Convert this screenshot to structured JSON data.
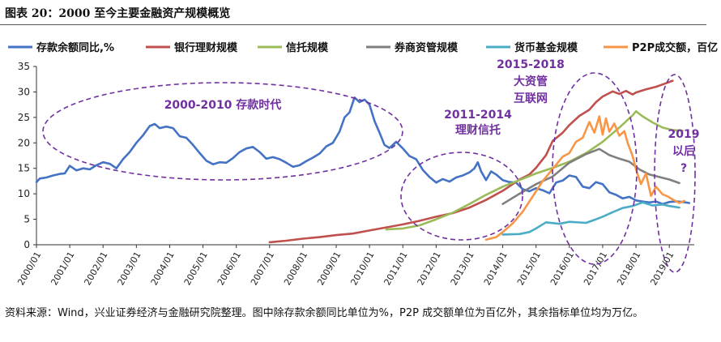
{
  "figure": {
    "title": "图表 20：2000 至今主要金融资产规模概览",
    "note": "资料来源：Wind，兴业证券经济与金融研究院整理。图中除存款余额同比单位为%，P2P 成交额单位为百亿外，其余指标单位均为万亿。"
  },
  "chart_data": {
    "type": "line",
    "title": "",
    "xlabel": "",
    "ylabel": "",
    "ylim": [
      0,
      35
    ],
    "yticks": [
      0,
      5,
      10,
      15,
      20,
      25,
      30,
      35
    ],
    "xlim": [
      2000.0,
      2019.75
    ],
    "xtick_labels": [
      "2000/01",
      "2001/01",
      "2002/01",
      "2003/01",
      "2004/01",
      "2005/01",
      "2006/01",
      "2007/01",
      "2008/01",
      "2009/01",
      "2010/01",
      "2011/01",
      "2012/01",
      "2013/01",
      "2014/01",
      "2015/01",
      "2016/01",
      "2017/01",
      "2018/01",
      "2019/01"
    ],
    "grid": false,
    "legend_position": "top",
    "series": [
      {
        "name": "存款余额同比,%",
        "color": "#4472c4",
        "points": [
          [
            2000.0,
            12.3
          ],
          [
            2000.1,
            13.0
          ],
          [
            2000.3,
            13.2
          ],
          [
            2000.5,
            13.6
          ],
          [
            2000.7,
            13.9
          ],
          [
            2000.85,
            14.0
          ],
          [
            2001.0,
            15.5
          ],
          [
            2001.2,
            14.6
          ],
          [
            2001.4,
            15.0
          ],
          [
            2001.6,
            14.8
          ],
          [
            2001.8,
            15.6
          ],
          [
            2002.0,
            16.2
          ],
          [
            2002.2,
            15.9
          ],
          [
            2002.4,
            15.0
          ],
          [
            2002.6,
            16.8
          ],
          [
            2002.8,
            18.2
          ],
          [
            2003.0,
            20.0
          ],
          [
            2003.2,
            21.5
          ],
          [
            2003.4,
            23.3
          ],
          [
            2003.55,
            23.7
          ],
          [
            2003.7,
            22.9
          ],
          [
            2003.9,
            23.2
          ],
          [
            2004.1,
            22.9
          ],
          [
            2004.3,
            21.3
          ],
          [
            2004.5,
            21.0
          ],
          [
            2004.7,
            19.6
          ],
          [
            2004.9,
            18.0
          ],
          [
            2005.1,
            16.5
          ],
          [
            2005.3,
            15.8
          ],
          [
            2005.5,
            16.2
          ],
          [
            2005.7,
            16.1
          ],
          [
            2005.9,
            17.0
          ],
          [
            2006.1,
            18.2
          ],
          [
            2006.3,
            18.9
          ],
          [
            2006.5,
            19.2
          ],
          [
            2006.7,
            18.2
          ],
          [
            2006.9,
            16.9
          ],
          [
            2007.1,
            17.2
          ],
          [
            2007.3,
            16.8
          ],
          [
            2007.5,
            16.1
          ],
          [
            2007.7,
            15.3
          ],
          [
            2007.9,
            15.6
          ],
          [
            2008.1,
            16.4
          ],
          [
            2008.3,
            17.1
          ],
          [
            2008.5,
            17.9
          ],
          [
            2008.7,
            19.3
          ],
          [
            2008.9,
            20.0
          ],
          [
            2009.1,
            22.2
          ],
          [
            2009.25,
            25.0
          ],
          [
            2009.4,
            26.0
          ],
          [
            2009.55,
            28.9
          ],
          [
            2009.7,
            28.0
          ],
          [
            2009.85,
            28.5
          ],
          [
            2010.0,
            27.5
          ],
          [
            2010.15,
            24.3
          ],
          [
            2010.3,
            22.0
          ],
          [
            2010.45,
            19.6
          ],
          [
            2010.6,
            19.0
          ],
          [
            2010.8,
            20.2
          ],
          [
            2011.0,
            18.9
          ],
          [
            2011.2,
            17.4
          ],
          [
            2011.4,
            16.8
          ],
          [
            2011.6,
            14.7
          ],
          [
            2011.8,
            13.3
          ],
          [
            2012.0,
            12.2
          ],
          [
            2012.2,
            12.9
          ],
          [
            2012.4,
            12.4
          ],
          [
            2012.6,
            13.2
          ],
          [
            2012.8,
            13.6
          ],
          [
            2013.0,
            14.2
          ],
          [
            2013.15,
            15.0
          ],
          [
            2013.25,
            16.2
          ],
          [
            2013.35,
            14.4
          ],
          [
            2013.5,
            12.7
          ],
          [
            2013.65,
            14.4
          ],
          [
            2013.8,
            13.8
          ],
          [
            2014.0,
            12.7
          ],
          [
            2014.2,
            12.3
          ],
          [
            2014.4,
            12.2
          ],
          [
            2014.6,
            10.9
          ],
          [
            2014.8,
            10.5
          ],
          [
            2015.0,
            11.1
          ],
          [
            2015.2,
            10.7
          ],
          [
            2015.4,
            10.1
          ],
          [
            2015.6,
            12.2
          ],
          [
            2015.8,
            12.6
          ],
          [
            2016.0,
            13.6
          ],
          [
            2016.2,
            13.3
          ],
          [
            2016.4,
            11.4
          ],
          [
            2016.6,
            11.1
          ],
          [
            2016.8,
            12.3
          ],
          [
            2017.0,
            11.9
          ],
          [
            2017.2,
            10.3
          ],
          [
            2017.4,
            9.8
          ],
          [
            2017.6,
            9.1
          ],
          [
            2017.8,
            9.4
          ],
          [
            2018.0,
            8.7
          ],
          [
            2018.2,
            8.5
          ],
          [
            2018.4,
            8.3
          ],
          [
            2018.6,
            8.5
          ],
          [
            2018.8,
            8.0
          ],
          [
            2019.0,
            8.4
          ],
          [
            2019.2,
            8.5
          ],
          [
            2019.4,
            8.4
          ],
          [
            2019.6,
            8.2
          ]
        ]
      },
      {
        "name": "银行理财规模",
        "color": "#c0504d",
        "points": [
          [
            2007.0,
            0.5
          ],
          [
            2007.5,
            0.8
          ],
          [
            2008.0,
            1.2
          ],
          [
            2008.5,
            1.5
          ],
          [
            2009.0,
            1.9
          ],
          [
            2009.5,
            2.2
          ],
          [
            2010.0,
            2.8
          ],
          [
            2010.5,
            3.4
          ],
          [
            2011.0,
            4.0
          ],
          [
            2011.5,
            4.7
          ],
          [
            2012.0,
            5.5
          ],
          [
            2012.5,
            6.2
          ],
          [
            2013.0,
            7.3
          ],
          [
            2013.5,
            8.8
          ],
          [
            2014.0,
            10.6
          ],
          [
            2014.5,
            12.8
          ],
          [
            2014.8,
            13.8
          ],
          [
            2015.0,
            15.1
          ],
          [
            2015.3,
            17.6
          ],
          [
            2015.5,
            20.4
          ],
          [
            2015.8,
            22.0
          ],
          [
            2016.0,
            23.5
          ],
          [
            2016.3,
            25.3
          ],
          [
            2016.6,
            26.5
          ],
          [
            2016.8,
            28.0
          ],
          [
            2017.0,
            29.1
          ],
          [
            2017.3,
            30.1
          ],
          [
            2017.5,
            29.6
          ],
          [
            2017.7,
            30.2
          ],
          [
            2017.9,
            29.5
          ],
          [
            2018.0,
            29.9
          ],
          [
            2018.3,
            30.5
          ],
          [
            2018.6,
            31.0
          ],
          [
            2018.9,
            31.7
          ],
          [
            2019.1,
            32.2
          ]
        ]
      },
      {
        "name": "信托规模",
        "color": "#9bbb59",
        "points": [
          [
            2010.5,
            3.0
          ],
          [
            2011.0,
            3.2
          ],
          [
            2011.5,
            3.8
          ],
          [
            2012.0,
            5.0
          ],
          [
            2012.5,
            6.3
          ],
          [
            2013.0,
            8.0
          ],
          [
            2013.5,
            9.8
          ],
          [
            2014.0,
            11.4
          ],
          [
            2014.5,
            12.7
          ],
          [
            2015.0,
            14.0
          ],
          [
            2015.5,
            15.1
          ],
          [
            2016.0,
            16.3
          ],
          [
            2016.5,
            18.0
          ],
          [
            2017.0,
            20.2
          ],
          [
            2017.5,
            23.0
          ],
          [
            2017.9,
            25.4
          ],
          [
            2018.0,
            26.2
          ],
          [
            2018.2,
            25.2
          ],
          [
            2018.5,
            24.0
          ],
          [
            2018.8,
            23.0
          ],
          [
            2019.1,
            22.5
          ],
          [
            2019.4,
            22.4
          ]
        ]
      },
      {
        "name": "券商资管规模",
        "color": "#7f7f7f",
        "points": [
          [
            2014.0,
            8.0
          ],
          [
            2014.5,
            10.0
          ],
          [
            2015.0,
            11.9
          ],
          [
            2015.5,
            13.4
          ],
          [
            2016.0,
            16.1
          ],
          [
            2016.5,
            17.8
          ],
          [
            2016.9,
            18.8
          ],
          [
            2017.2,
            17.6
          ],
          [
            2017.5,
            16.9
          ],
          [
            2017.8,
            16.3
          ],
          [
            2018.1,
            14.8
          ],
          [
            2018.4,
            13.8
          ],
          [
            2018.7,
            13.3
          ],
          [
            2019.0,
            12.8
          ],
          [
            2019.3,
            12.1
          ]
        ]
      },
      {
        "name": "货币基金规模",
        "color": "#4bacc6",
        "points": [
          [
            2014.0,
            2.0
          ],
          [
            2014.5,
            2.1
          ],
          [
            2014.8,
            2.5
          ],
          [
            2015.0,
            3.2
          ],
          [
            2015.3,
            4.4
          ],
          [
            2015.7,
            4.1
          ],
          [
            2016.0,
            4.5
          ],
          [
            2016.5,
            4.3
          ],
          [
            2016.8,
            5.0
          ],
          [
            2017.0,
            5.5
          ],
          [
            2017.3,
            6.4
          ],
          [
            2017.6,
            7.2
          ],
          [
            2017.9,
            7.6
          ],
          [
            2018.2,
            8.3
          ],
          [
            2018.5,
            7.7
          ],
          [
            2018.8,
            7.9
          ],
          [
            2019.0,
            7.6
          ],
          [
            2019.3,
            7.3
          ]
        ]
      },
      {
        "name": "P2P成交额，百亿",
        "color": "#f79646",
        "points": [
          [
            2013.5,
            1.0
          ],
          [
            2013.8,
            1.5
          ],
          [
            2014.0,
            2.5
          ],
          [
            2014.3,
            4.2
          ],
          [
            2014.6,
            6.5
          ],
          [
            2014.9,
            9.5
          ],
          [
            2015.2,
            12.5
          ],
          [
            2015.5,
            14.9
          ],
          [
            2015.8,
            17.3
          ],
          [
            2016.0,
            18.0
          ],
          [
            2016.2,
            20.2
          ],
          [
            2016.4,
            21.0
          ],
          [
            2016.6,
            24.1
          ],
          [
            2016.75,
            22.0
          ],
          [
            2016.9,
            25.2
          ],
          [
            2017.0,
            21.6
          ],
          [
            2017.1,
            24.8
          ],
          [
            2017.2,
            22.2
          ],
          [
            2017.35,
            23.8
          ],
          [
            2017.5,
            21.4
          ],
          [
            2017.65,
            22.3
          ],
          [
            2017.75,
            20.0
          ],
          [
            2017.9,
            17.4
          ],
          [
            2018.0,
            14.8
          ],
          [
            2018.15,
            11.9
          ],
          [
            2018.3,
            14.0
          ],
          [
            2018.45,
            9.6
          ],
          [
            2018.6,
            11.4
          ],
          [
            2018.8,
            9.9
          ],
          [
            2018.95,
            9.5
          ],
          [
            2019.1,
            8.9
          ],
          [
            2019.3,
            8.2
          ],
          [
            2019.45,
            8.6
          ]
        ]
      }
    ],
    "annotations": [
      {
        "text": "2000-2010 存款时代"
      },
      {
        "text": "2011-2014 理财信托"
      },
      {
        "text": "2015-2018 大资管 互联网"
      },
      {
        "text": "2019 以后 ?"
      }
    ]
  }
}
